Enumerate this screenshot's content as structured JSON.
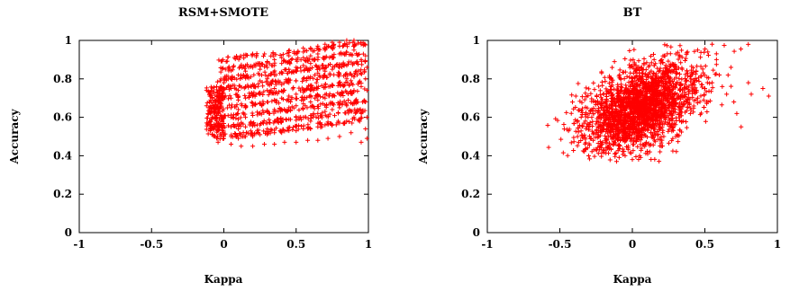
{
  "chart_data": [
    {
      "type": "scatter",
      "title": "RSM+SMOTE",
      "xlabel": "Kappa",
      "ylabel": "Accuracy",
      "xlim": [
        -1,
        1
      ],
      "ylim": [
        0,
        1
      ],
      "xticks": [
        "-1",
        "-0.5",
        "0",
        "0.5",
        "1"
      ],
      "yticks": [
        "0",
        "0.2",
        "0.4",
        "0.6",
        "0.8",
        "1"
      ],
      "marker": "+",
      "color": "#ff0000",
      "points": [
        [
          -0.12,
          0.74
        ],
        [
          -0.1,
          0.72
        ],
        [
          -0.08,
          0.7
        ],
        [
          -0.1,
          0.68
        ],
        [
          -0.12,
          0.66
        ],
        [
          -0.09,
          0.64
        ],
        [
          -0.11,
          0.62
        ],
        [
          -0.08,
          0.6
        ],
        [
          -0.1,
          0.58
        ],
        [
          -0.09,
          0.56
        ],
        [
          -0.07,
          0.54
        ],
        [
          -0.06,
          0.5
        ],
        [
          -0.04,
          0.47
        ],
        [
          -0.05,
          0.76
        ],
        [
          -0.03,
          0.74
        ],
        [
          -0.02,
          0.71
        ],
        [
          -0.04,
          0.69
        ],
        [
          -0.06,
          0.66
        ],
        [
          -0.03,
          0.63
        ],
        [
          -0.05,
          0.61
        ],
        [
          -0.02,
          0.59
        ],
        [
          -0.04,
          0.57
        ],
        [
          -0.03,
          0.55
        ],
        [
          -0.01,
          0.52
        ],
        [
          0.0,
          0.49
        ],
        [
          0.0,
          0.78
        ],
        [
          0.05,
          0.8
        ],
        [
          0.1,
          0.82
        ],
        [
          0.15,
          0.84
        ],
        [
          0.2,
          0.86
        ],
        [
          0.25,
          0.88
        ],
        [
          0.3,
          0.89
        ],
        [
          0.35,
          0.9
        ],
        [
          0.4,
          0.91
        ],
        [
          0.45,
          0.92
        ],
        [
          0.5,
          0.93
        ],
        [
          0.55,
          0.94
        ],
        [
          0.6,
          0.96
        ],
        [
          0.65,
          0.97
        ],
        [
          0.7,
          0.98
        ],
        [
          0.75,
          0.99
        ],
        [
          0.8,
          0.99
        ],
        [
          0.85,
          1.0
        ],
        [
          0.9,
          1.0
        ],
        [
          0.95,
          0.98
        ],
        [
          0.05,
          0.75
        ],
        [
          0.1,
          0.74
        ],
        [
          0.15,
          0.76
        ],
        [
          0.2,
          0.77
        ],
        [
          0.25,
          0.79
        ],
        [
          0.3,
          0.8
        ],
        [
          0.35,
          0.82
        ],
        [
          0.4,
          0.83
        ],
        [
          0.45,
          0.85
        ],
        [
          0.5,
          0.86
        ],
        [
          0.55,
          0.87
        ],
        [
          0.6,
          0.88
        ],
        [
          0.65,
          0.9
        ],
        [
          0.7,
          0.91
        ],
        [
          0.75,
          0.92
        ],
        [
          0.8,
          0.93
        ],
        [
          0.85,
          0.94
        ],
        [
          0.9,
          0.95
        ],
        [
          0.05,
          0.7
        ],
        [
          0.1,
          0.69
        ],
        [
          0.15,
          0.7
        ],
        [
          0.2,
          0.71
        ],
        [
          0.25,
          0.72
        ],
        [
          0.3,
          0.74
        ],
        [
          0.35,
          0.75
        ],
        [
          0.4,
          0.77
        ],
        [
          0.45,
          0.78
        ],
        [
          0.5,
          0.79
        ],
        [
          0.55,
          0.8
        ],
        [
          0.6,
          0.81
        ],
        [
          0.65,
          0.83
        ],
        [
          0.7,
          0.84
        ],
        [
          0.75,
          0.85
        ],
        [
          0.8,
          0.86
        ],
        [
          0.85,
          0.87
        ],
        [
          0.9,
          0.88
        ],
        [
          0.95,
          0.9
        ],
        [
          0.05,
          0.65
        ],
        [
          0.1,
          0.64
        ],
        [
          0.15,
          0.65
        ],
        [
          0.2,
          0.66
        ],
        [
          0.25,
          0.67
        ],
        [
          0.3,
          0.68
        ],
        [
          0.35,
          0.69
        ],
        [
          0.4,
          0.7
        ],
        [
          0.45,
          0.71
        ],
        [
          0.5,
          0.72
        ],
        [
          0.55,
          0.73
        ],
        [
          0.6,
          0.74
        ],
        [
          0.65,
          0.75
        ],
        [
          0.7,
          0.76
        ],
        [
          0.75,
          0.77
        ],
        [
          0.8,
          0.78
        ],
        [
          0.85,
          0.8
        ],
        [
          0.9,
          0.81
        ],
        [
          0.05,
          0.6
        ],
        [
          0.1,
          0.59
        ],
        [
          0.15,
          0.6
        ],
        [
          0.2,
          0.61
        ],
        [
          0.25,
          0.62
        ],
        [
          0.3,
          0.63
        ],
        [
          0.35,
          0.64
        ],
        [
          0.4,
          0.64
        ],
        [
          0.45,
          0.65
        ],
        [
          0.5,
          0.66
        ],
        [
          0.55,
          0.67
        ],
        [
          0.6,
          0.68
        ],
        [
          0.65,
          0.69
        ],
        [
          0.7,
          0.7
        ],
        [
          0.75,
          0.71
        ],
        [
          0.8,
          0.72
        ],
        [
          0.85,
          0.73
        ],
        [
          0.9,
          0.74
        ],
        [
          0.95,
          0.76
        ],
        [
          0.05,
          0.55
        ],
        [
          0.1,
          0.54
        ],
        [
          0.15,
          0.55
        ],
        [
          0.2,
          0.56
        ],
        [
          0.25,
          0.56
        ],
        [
          0.3,
          0.57
        ],
        [
          0.35,
          0.58
        ],
        [
          0.4,
          0.58
        ],
        [
          0.45,
          0.59
        ],
        [
          0.5,
          0.6
        ],
        [
          0.55,
          0.6
        ],
        [
          0.6,
          0.61
        ],
        [
          0.65,
          0.62
        ],
        [
          0.7,
          0.63
        ],
        [
          0.75,
          0.64
        ],
        [
          0.8,
          0.65
        ],
        [
          0.85,
          0.66
        ],
        [
          0.9,
          0.67
        ],
        [
          0.05,
          0.5
        ],
        [
          0.1,
          0.49
        ],
        [
          0.15,
          0.5
        ],
        [
          0.2,
          0.5
        ],
        [
          0.25,
          0.51
        ],
        [
          0.3,
          0.51
        ],
        [
          0.35,
          0.52
        ],
        [
          0.4,
          0.52
        ],
        [
          0.45,
          0.53
        ],
        [
          0.5,
          0.53
        ],
        [
          0.55,
          0.54
        ],
        [
          0.6,
          0.54
        ],
        [
          0.65,
          0.55
        ],
        [
          0.7,
          0.56
        ],
        [
          0.75,
          0.56
        ],
        [
          0.8,
          0.57
        ],
        [
          0.85,
          0.58
        ],
        [
          0.9,
          0.6
        ],
        [
          0.95,
          0.62
        ],
        [
          0.05,
          0.46
        ],
        [
          0.12,
          0.45
        ],
        [
          0.2,
          0.45
        ],
        [
          0.28,
          0.46
        ],
        [
          0.35,
          0.46
        ],
        [
          0.42,
          0.47
        ],
        [
          0.5,
          0.47
        ],
        [
          0.58,
          0.48
        ],
        [
          0.65,
          0.48
        ],
        [
          0.72,
          0.49
        ],
        [
          0.8,
          0.5
        ],
        [
          0.88,
          0.52
        ],
        [
          0.95,
          0.47
        ],
        [
          0.25,
          0.85
        ],
        [
          0.3,
          0.86
        ],
        [
          0.35,
          0.87
        ],
        [
          0.4,
          0.88
        ],
        [
          0.45,
          0.89
        ],
        [
          0.5,
          0.9
        ],
        [
          0.55,
          0.91
        ],
        [
          0.6,
          0.92
        ],
        [
          0.65,
          0.93
        ],
        [
          0.7,
          0.95
        ],
        [
          0.75,
          0.96
        ],
        [
          0.8,
          0.97
        ],
        [
          0.85,
          0.98
        ],
        [
          0.9,
          0.97
        ],
        [
          0.6,
          0.58
        ],
        [
          0.62,
          0.62
        ],
        [
          0.61,
          0.66
        ],
        [
          0.63,
          0.7
        ],
        [
          0.62,
          0.74
        ],
        [
          0.64,
          0.78
        ],
        [
          0.63,
          0.82
        ],
        [
          0.65,
          0.86
        ],
        [
          0.98,
          0.92
        ],
        [
          0.99,
          0.86
        ],
        [
          0.98,
          0.8
        ],
        [
          0.99,
          0.74
        ],
        [
          0.98,
          0.68
        ],
        [
          0.99,
          0.6
        ],
        [
          0.98,
          0.54
        ],
        [
          0.99,
          0.49
        ]
      ]
    },
    {
      "type": "scatter",
      "title": "BT",
      "xlabel": "Kappa",
      "ylabel": "Accuracy",
      "xlim": [
        -1,
        1
      ],
      "ylim": [
        0,
        1
      ],
      "xticks": [
        "-1",
        "-0.5",
        "0",
        "0.5",
        "1"
      ],
      "yticks": [
        "0",
        "0.2",
        "0.4",
        "0.6",
        "0.8",
        "1"
      ],
      "marker": "+",
      "color": "#ff0000",
      "cloud": {
        "center": [
          0.05,
          0.65
        ],
        "spread": [
          0.2,
          0.12
        ],
        "corr": 0.45,
        "count": 2200
      },
      "points": [
        [
          -0.3,
          0.55
        ],
        [
          -0.28,
          0.6
        ],
        [
          -0.25,
          0.52
        ],
        [
          -0.27,
          0.48
        ],
        [
          -0.22,
          0.45
        ],
        [
          -0.18,
          0.43
        ],
        [
          -0.12,
          0.41
        ],
        [
          -0.05,
          0.4
        ],
        [
          0.0,
          0.38
        ],
        [
          0.05,
          0.4
        ],
        [
          0.12,
          0.42
        ],
        [
          0.2,
          0.45
        ],
        [
          0.3,
          0.5
        ],
        [
          0.35,
          0.58
        ],
        [
          0.4,
          0.62
        ],
        [
          0.45,
          0.7
        ],
        [
          0.5,
          0.75
        ],
        [
          0.55,
          0.78
        ],
        [
          0.6,
          0.82
        ],
        [
          0.62,
          0.76
        ],
        [
          0.65,
          0.72
        ],
        [
          0.7,
          0.68
        ],
        [
          0.72,
          0.62
        ],
        [
          0.75,
          0.55
        ],
        [
          0.58,
          0.9
        ],
        [
          0.52,
          0.94
        ],
        [
          0.45,
          0.95
        ],
        [
          0.38,
          0.94
        ],
        [
          0.3,
          0.93
        ],
        [
          0.22,
          0.92
        ],
        [
          0.15,
          0.9
        ],
        [
          0.08,
          0.88
        ],
        [
          0.0,
          0.86
        ],
        [
          -0.08,
          0.8
        ],
        [
          -0.15,
          0.76
        ],
        [
          -0.2,
          0.72
        ],
        [
          -0.25,
          0.68
        ],
        [
          -0.28,
          0.64
        ],
        [
          0.8,
          0.78
        ],
        [
          0.82,
          0.72
        ],
        [
          0.9,
          0.75
        ],
        [
          0.94,
          0.71
        ],
        [
          0.68,
          0.86
        ],
        [
          0.55,
          0.98
        ]
      ]
    }
  ]
}
